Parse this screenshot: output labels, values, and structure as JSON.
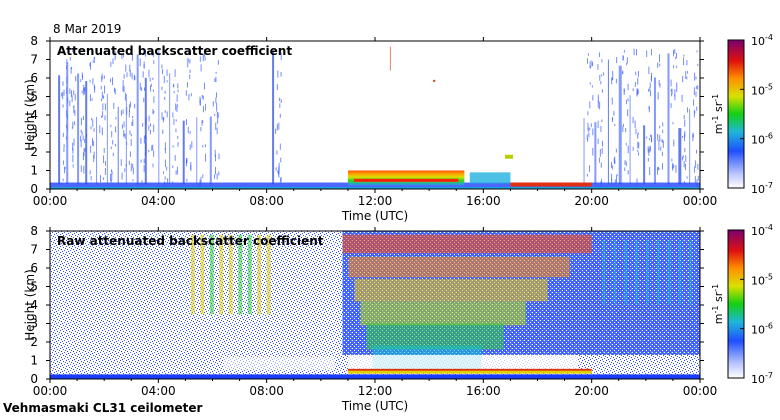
{
  "date": "8 Mar 2019",
  "footer": "Vehmasmaki CL31 ceilometer",
  "chart_data": [
    {
      "type": "heatmap",
      "title": "Attenuated backscatter coefficient",
      "xlabel": "Time (UTC)",
      "ylabel": "Height (km)",
      "xticks": [
        "00:00",
        "04:00",
        "08:00",
        "12:00",
        "16:00",
        "20:00",
        "00:00"
      ],
      "xlim": [
        0,
        24
      ],
      "ylim": [
        0,
        8
      ],
      "yticks": [
        0,
        1,
        2,
        3,
        4,
        5,
        6,
        7,
        8
      ],
      "colorbar": {
        "unit": "m-1 sr-1",
        "labels": [
          "10-4",
          "10-5",
          "10-6",
          "10-7"
        ],
        "range_log10": [
          -7,
          -4
        ]
      },
      "features": {
        "precip_streaks_hours": [
          0.3,
          0.6,
          1.0,
          1.3,
          1.7,
          2.1,
          2.5,
          2.8,
          3.2,
          3.5,
          4.0,
          4.4,
          4.9,
          5.4,
          5.9,
          8.2,
          19.7,
          20.1,
          20.6,
          21.0,
          21.4,
          21.9,
          22.3,
          22.8,
          23.2,
          23.6
        ],
        "boundary_layer_top_km": 0.3,
        "cloud_11_15h_km": [
          0.3,
          1.0
        ],
        "cloud_16_17h_km": [
          1.7,
          1.8
        ]
      }
    },
    {
      "type": "heatmap",
      "title": "Raw attenuated backscatter coefficient",
      "xlabel": "Time (UTC)",
      "ylabel": "Height (km)",
      "xticks": [
        "00:00",
        "04:00",
        "08:00",
        "12:00",
        "16:00",
        "20:00",
        "00:00"
      ],
      "xlim": [
        0,
        24
      ],
      "ylim": [
        0,
        8
      ],
      "yticks": [
        0,
        1,
        2,
        3,
        4,
        5,
        6,
        7,
        8
      ],
      "colorbar": {
        "unit": "m-1 sr-1",
        "labels": [
          "10-4",
          "10-5",
          "10-6",
          "10-7"
        ],
        "range_log10": [
          -7,
          -4
        ]
      },
      "features": {
        "noise_increase_hours": [
          10.8,
          20.0
        ],
        "clear_gap_km": [
          0.2,
          1.3
        ]
      }
    }
  ]
}
